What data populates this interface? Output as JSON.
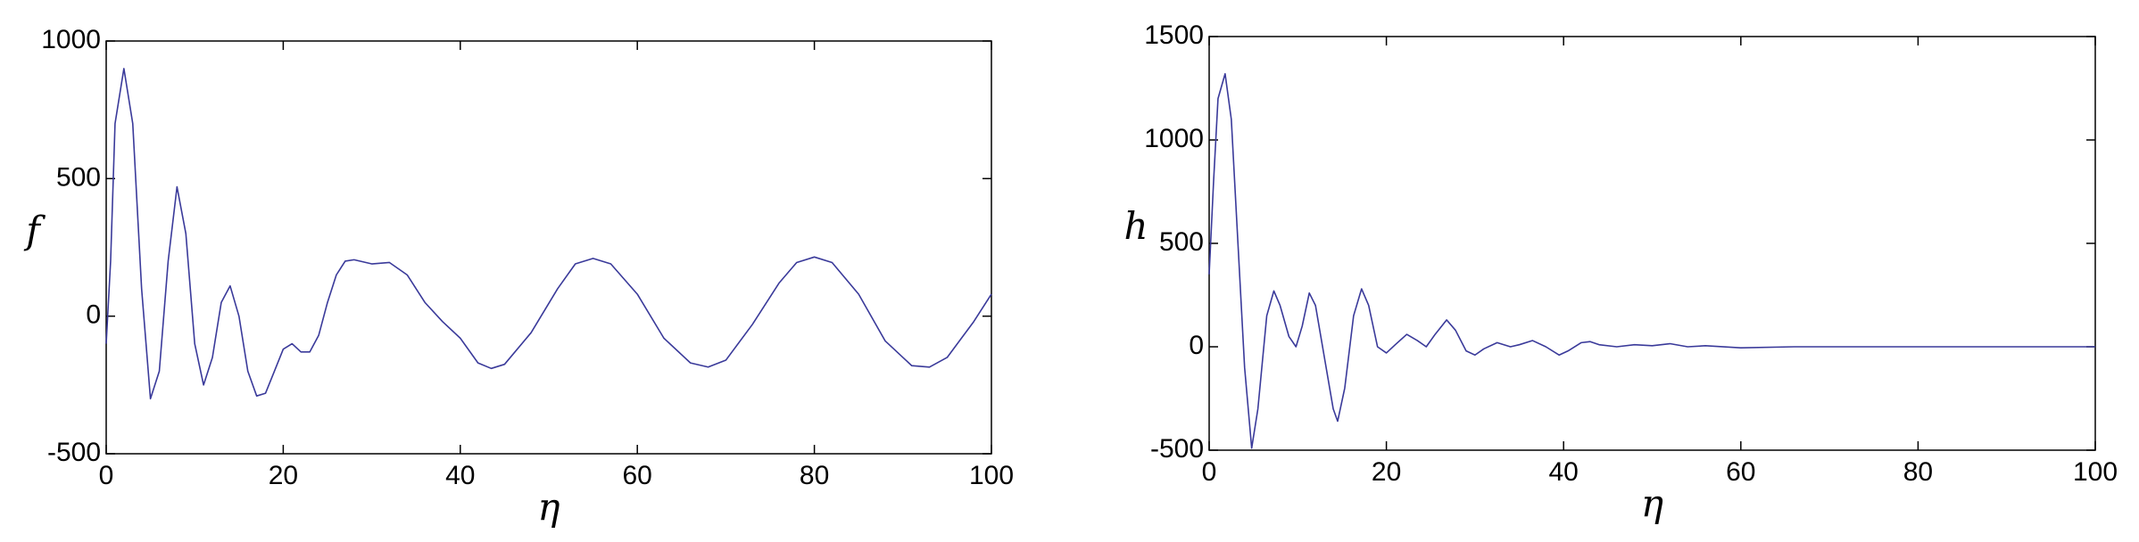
{
  "chart_data": [
    {
      "type": "line",
      "x_label": "η",
      "y_label": "f",
      "xlim": [
        0,
        100
      ],
      "ylim": [
        -500,
        1000
      ],
      "xticks": [
        0,
        20,
        40,
        60,
        80,
        100
      ],
      "yticks": [
        -500,
        0,
        500,
        1000
      ],
      "series": [
        {
          "color": "#3a3a9a",
          "x": [
            0,
            0.5,
            1,
            2,
            3,
            4,
            5,
            6,
            7,
            8,
            9,
            10,
            11,
            12,
            13,
            14,
            15,
            16,
            17,
            18,
            19,
            20,
            21,
            22,
            23,
            24,
            25,
            26,
            27,
            28,
            30,
            32,
            34,
            36,
            38,
            40,
            42,
            43.5,
            45,
            48,
            51,
            53,
            55,
            57,
            60,
            63,
            66,
            68,
            70,
            73,
            76,
            78,
            80,
            82,
            85,
            88,
            91,
            93,
            95,
            98,
            100
          ],
          "values": [
            -100,
            200,
            700,
            900,
            700,
            100,
            -300,
            -200,
            200,
            470,
            300,
            -100,
            -250,
            -150,
            50,
            110,
            0,
            -200,
            -290,
            -280,
            -200,
            -120,
            -100,
            -130,
            -130,
            -70,
            50,
            150,
            200,
            205,
            190,
            195,
            150,
            50,
            -20,
            -80,
            -170,
            -190,
            -175,
            -60,
            100,
            190,
            210,
            190,
            80,
            -80,
            -170,
            -185,
            -160,
            -30,
            120,
            195,
            215,
            195,
            80,
            -90,
            -180,
            -185,
            -150,
            -20,
            80
          ]
        }
      ]
    },
    {
      "type": "line",
      "x_label": "η",
      "y_label": "h",
      "xlim": [
        0,
        100
      ],
      "ylim": [
        -500,
        1500
      ],
      "xticks": [
        0,
        20,
        40,
        60,
        80,
        100
      ],
      "yticks": [
        -500,
        0,
        500,
        1000,
        1500
      ],
      "series": [
        {
          "color": "#3a3a9a",
          "x": [
            0,
            0.5,
            1,
            1.8,
            2.5,
            3,
            4,
            4.8,
            5.5,
            6.5,
            7.3,
            8,
            9,
            9.8,
            10.5,
            11.3,
            12,
            13,
            14,
            14.5,
            15.3,
            16.3,
            17.2,
            18,
            19,
            20,
            21,
            22.3,
            23.5,
            24.5,
            25.5,
            26.8,
            27.8,
            29,
            30,
            31,
            32.5,
            34,
            35,
            36.5,
            38,
            39.5,
            40.5,
            42,
            43,
            44,
            46,
            48,
            50,
            52,
            54,
            56,
            60,
            66,
            100
          ],
          "values": [
            350,
            800,
            1200,
            1320,
            1100,
            700,
            -100,
            -490,
            -300,
            150,
            270,
            200,
            50,
            0,
            100,
            260,
            200,
            -50,
            -300,
            -360,
            -200,
            150,
            280,
            200,
            0,
            -30,
            10,
            60,
            30,
            0,
            60,
            130,
            80,
            -20,
            -40,
            -10,
            20,
            0,
            10,
            30,
            0,
            -40,
            -20,
            20,
            25,
            10,
            0,
            10,
            5,
            15,
            0,
            5,
            -5,
            0,
            0
          ]
        }
      ]
    }
  ]
}
